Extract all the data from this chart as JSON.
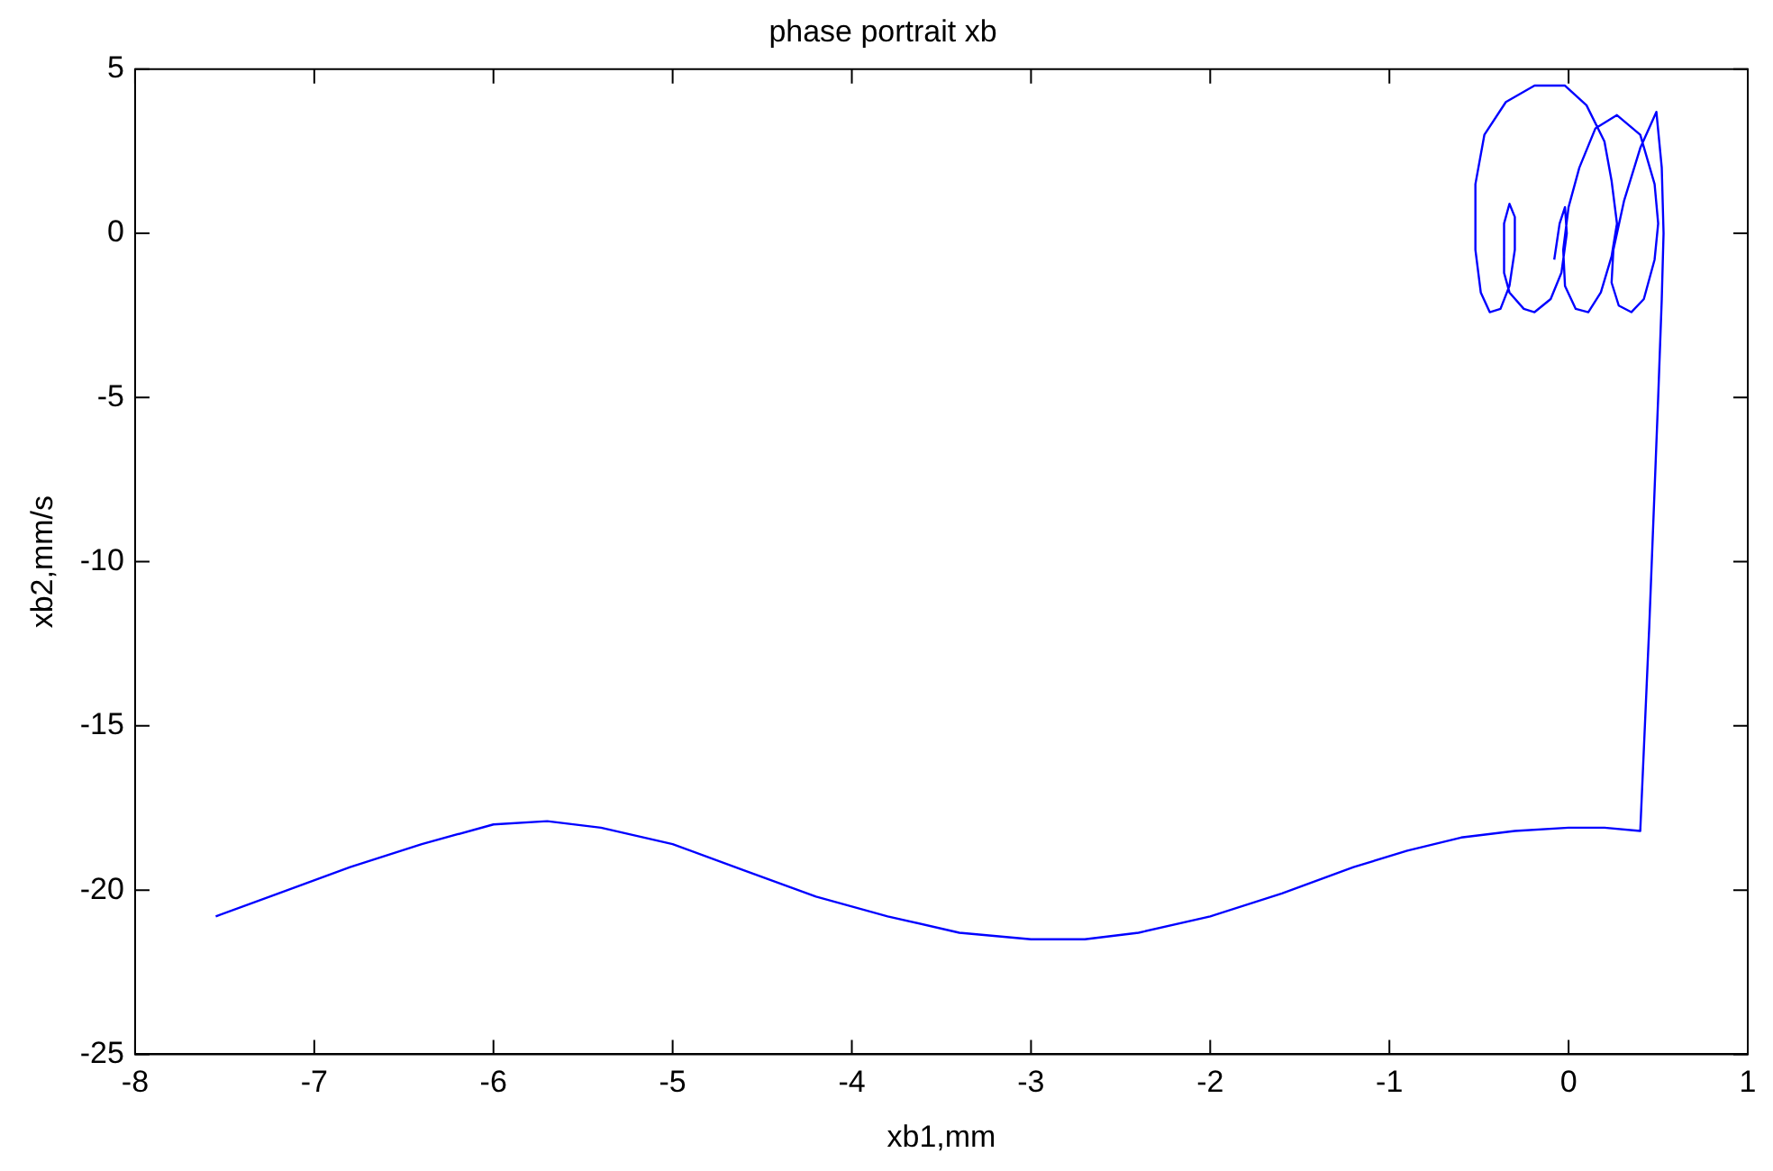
{
  "chart_data": {
    "type": "line",
    "title": "phase portrait xb",
    "xlabel": "xb1,mm",
    "ylabel": "xb2,mm/s",
    "xlim": [
      -8,
      1
    ],
    "ylim": [
      -25,
      5
    ],
    "xticks": [
      -8,
      -7,
      -6,
      -5,
      -4,
      -3,
      -2,
      -1,
      0,
      1
    ],
    "yticks": [
      -25,
      -20,
      -15,
      -10,
      -5,
      0,
      5
    ],
    "grid": false,
    "legend": false,
    "marker": "none",
    "line_style": "solid",
    "series": [
      {
        "color": "#0000ff",
        "x": [
          -7.55,
          -7.2,
          -6.8,
          -6.4,
          -6.0,
          -5.7,
          -5.4,
          -5.0,
          -4.6,
          -4.2,
          -3.8,
          -3.4,
          -3.0,
          -2.7,
          -2.4,
          -2.0,
          -1.6,
          -1.2,
          -0.9,
          -0.6,
          -0.3,
          0.0,
          0.2,
          0.4,
          0.45,
          0.5,
          0.52,
          0.53,
          0.52,
          0.49,
          0.4,
          0.31,
          0.25,
          0.24,
          0.28,
          0.35,
          0.42,
          0.48,
          0.5,
          0.48,
          0.4,
          0.27,
          0.15,
          0.06,
          0.0,
          -0.03,
          -0.02,
          0.04,
          0.11,
          0.18,
          0.24,
          0.27,
          0.24,
          0.2,
          0.1,
          -0.02,
          -0.19,
          -0.35,
          -0.47,
          -0.52,
          -0.52,
          -0.49,
          -0.44,
          -0.38,
          -0.33,
          -0.3,
          -0.3,
          -0.33,
          -0.36,
          -0.36,
          -0.33,
          -0.25,
          -0.19,
          -0.1,
          -0.04,
          -0.01,
          -0.02,
          -0.05,
          -0.08
        ],
        "values": [
          -20.8,
          -20.1,
          -19.3,
          -18.6,
          -18.0,
          -17.9,
          -18.1,
          -18.6,
          -19.4,
          -20.2,
          -20.8,
          -21.3,
          -21.5,
          -21.5,
          -21.3,
          -20.8,
          -20.1,
          -19.3,
          -18.8,
          -18.4,
          -18.2,
          -18.1,
          -18.1,
          -18.2,
          -12,
          -5,
          -2,
          0,
          2,
          3.7,
          2.6,
          1.0,
          -0.5,
          -1.5,
          -2.2,
          -2.4,
          -2.0,
          -0.8,
          0.3,
          1.5,
          3.0,
          3.6,
          3.2,
          2.0,
          0.8,
          -0.5,
          -1.6,
          -2.3,
          -2.4,
          -1.8,
          -0.7,
          0.3,
          1.6,
          2.8,
          3.9,
          4.5,
          4.5,
          4.0,
          3.0,
          1.5,
          -0.5,
          -1.8,
          -2.4,
          -2.3,
          -1.6,
          -0.5,
          0.5,
          0.9,
          0.3,
          -1.2,
          -1.8,
          -2.3,
          -2.4,
          -2.0,
          -1.2,
          0.0,
          0.8,
          0.3,
          -0.8
        ]
      }
    ]
  }
}
